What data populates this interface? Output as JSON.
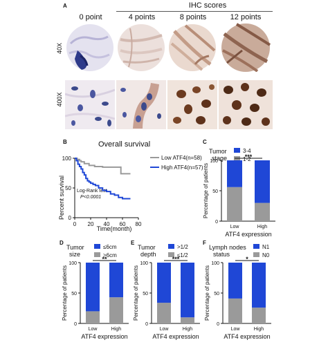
{
  "panel_labels": {
    "a": "A",
    "b": "B",
    "c": "C",
    "d": "D",
    "e": "E",
    "f": "F"
  },
  "ihc": {
    "title": "IHC scores",
    "columns": [
      "0 point",
      "4 points",
      "8 points",
      "12 points"
    ],
    "rows": [
      "40X",
      "400X"
    ]
  },
  "colors": {
    "high_blue": "#1f47d6",
    "low_gray": "#9a9a9a",
    "stain_brown": "#6b3a1f",
    "hematoxylin": "#3c4a8c"
  },
  "survival": {
    "title": "Overall survival",
    "ylabel": "Percent survival",
    "xlabel": "Time(month)",
    "legend_low": "Low ATF4(n=58)",
    "legend_high": "High ATF4(n=57)",
    "test_label": "Log-Rank test",
    "p_label": "P<0.0001",
    "x_ticks": [
      "0",
      "20",
      "40",
      "60",
      "80"
    ],
    "y_ticks": [
      "0",
      "50",
      "100"
    ]
  },
  "bar_panels": {
    "c": {
      "title_lines": [
        "Tumor",
        "stage"
      ],
      "legend_top": "3-4",
      "legend_bottom": "1-2",
      "sig": "***"
    },
    "d": {
      "title_lines": [
        "Tumor",
        "size"
      ],
      "legend_top": "≤6cm",
      "legend_bottom": ">6cm",
      "sig": "**"
    },
    "e": {
      "title_lines": [
        "Tumor",
        "depth"
      ],
      "legend_top": ">1/2",
      "legend_bottom": "≤1/2",
      "sig": "***"
    },
    "f": {
      "title_lines": [
        "Lymph nodes",
        "status"
      ],
      "legend_top": "N1",
      "legend_bottom": "N0",
      "sig": "*"
    },
    "ylabel": "Percentage of patients",
    "xlabel": "ATF4 expression",
    "categories": [
      "Low",
      "High"
    ],
    "y_ticks": [
      "0",
      "50",
      "100"
    ]
  },
  "chart_data": [
    {
      "type": "line",
      "title": "Overall survival",
      "xlabel": "Time(month)",
      "ylabel": "Percent survival",
      "xlim": [
        0,
        80
      ],
      "ylim": [
        0,
        100
      ],
      "series": [
        {
          "name": "Low ATF4(n=58)",
          "color": "#9a9a9a",
          "x": [
            0,
            3,
            6,
            8,
            12,
            18,
            25,
            35,
            50,
            58,
            70
          ],
          "y": [
            100,
            98,
            96,
            94,
            91,
            88,
            86,
            85,
            85,
            74,
            74
          ]
        },
        {
          "name": "High ATF4(n=57)",
          "color": "#1f47d6",
          "x": [
            0,
            2,
            4,
            6,
            8,
            10,
            12,
            14,
            16,
            18,
            20,
            23,
            26,
            30,
            35,
            40,
            45,
            50,
            55,
            60,
            70
          ],
          "y": [
            100,
            96,
            90,
            86,
            82,
            76,
            72,
            66,
            62,
            60,
            58,
            56,
            54,
            50,
            46,
            44,
            40,
            38,
            34,
            32,
            32
          ]
        }
      ]
    },
    {
      "type": "bar",
      "stacked": true,
      "title": "Tumor stage",
      "categories": [
        "Low",
        "High"
      ],
      "xlabel": "ATF4 expression",
      "ylabel": "Percentage of patients",
      "ylim": [
        0,
        100
      ],
      "series": [
        {
          "name": "1-2",
          "color": "#9a9a9a",
          "values": [
            56,
            30
          ]
        },
        {
          "name": "3-4",
          "color": "#1f47d6",
          "values": [
            44,
            70
          ]
        }
      ],
      "significance": "***"
    },
    {
      "type": "bar",
      "stacked": true,
      "title": "Tumor size",
      "categories": [
        "Low",
        "High"
      ],
      "xlabel": "ATF4 expression",
      "ylabel": "Percentage of patients",
      "ylim": [
        0,
        100
      ],
      "series": [
        {
          "name": ">6cm",
          "color": "#9a9a9a",
          "values": [
            20,
            43
          ]
        },
        {
          "name": "≤6cm",
          "color": "#1f47d6",
          "values": [
            80,
            57
          ]
        }
      ],
      "significance": "**"
    },
    {
      "type": "bar",
      "stacked": true,
      "title": "Tumor depth",
      "categories": [
        "Low",
        "High"
      ],
      "xlabel": "ATF4 expression",
      "ylabel": "Percentage of patients",
      "ylim": [
        0,
        100
      ],
      "series": [
        {
          "name": "≤1/2",
          "color": "#9a9a9a",
          "values": [
            34,
            10
          ]
        },
        {
          "name": ">1/2",
          "color": "#1f47d6",
          "values": [
            66,
            90
          ]
        }
      ],
      "significance": "***"
    },
    {
      "type": "bar",
      "stacked": true,
      "title": "Lymph nodes status",
      "categories": [
        "Low",
        "High"
      ],
      "xlabel": "ATF4 expression",
      "ylabel": "Percentage of patients",
      "ylim": [
        0,
        100
      ],
      "series": [
        {
          "name": "N0",
          "color": "#9a9a9a",
          "values": [
            41,
            26
          ]
        },
        {
          "name": "N1",
          "color": "#1f47d6",
          "values": [
            59,
            74
          ]
        }
      ],
      "significance": "*"
    }
  ]
}
